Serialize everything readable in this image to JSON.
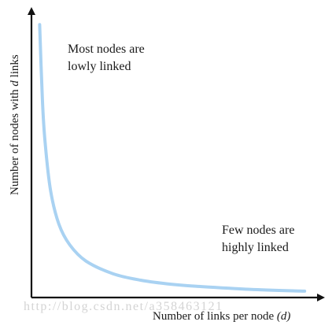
{
  "chart_data": {
    "type": "line",
    "title": "",
    "xlabel": "Number of links per node",
    "xlabel_symbol": "(d)",
    "ylabel": "Number of nodes with",
    "ylabel_symbol": "d",
    "ylabel_suffix": "links",
    "ticks": "none",
    "grid": false,
    "series": [
      {
        "color": "#a9d2f2",
        "x": [
          0.3,
          0.4,
          0.5,
          0.7,
          1.0,
          1.4,
          2.0,
          3.0,
          4.0,
          5.0,
          6.0,
          8.0,
          10.0
        ],
        "y": [
          6.0,
          4.35,
          3.4,
          2.35,
          1.62,
          1.16,
          0.8,
          0.52,
          0.38,
          0.3,
          0.25,
          0.18,
          0.14
        ]
      }
    ],
    "annotations": [
      {
        "id": "top",
        "lines": [
          "Most nodes are",
          "lowly linked"
        ]
      },
      {
        "id": "bottom",
        "lines": [
          "Few nodes are",
          "highly linked"
        ]
      }
    ],
    "watermark": "http://blog.csdn.net/a358463121"
  }
}
